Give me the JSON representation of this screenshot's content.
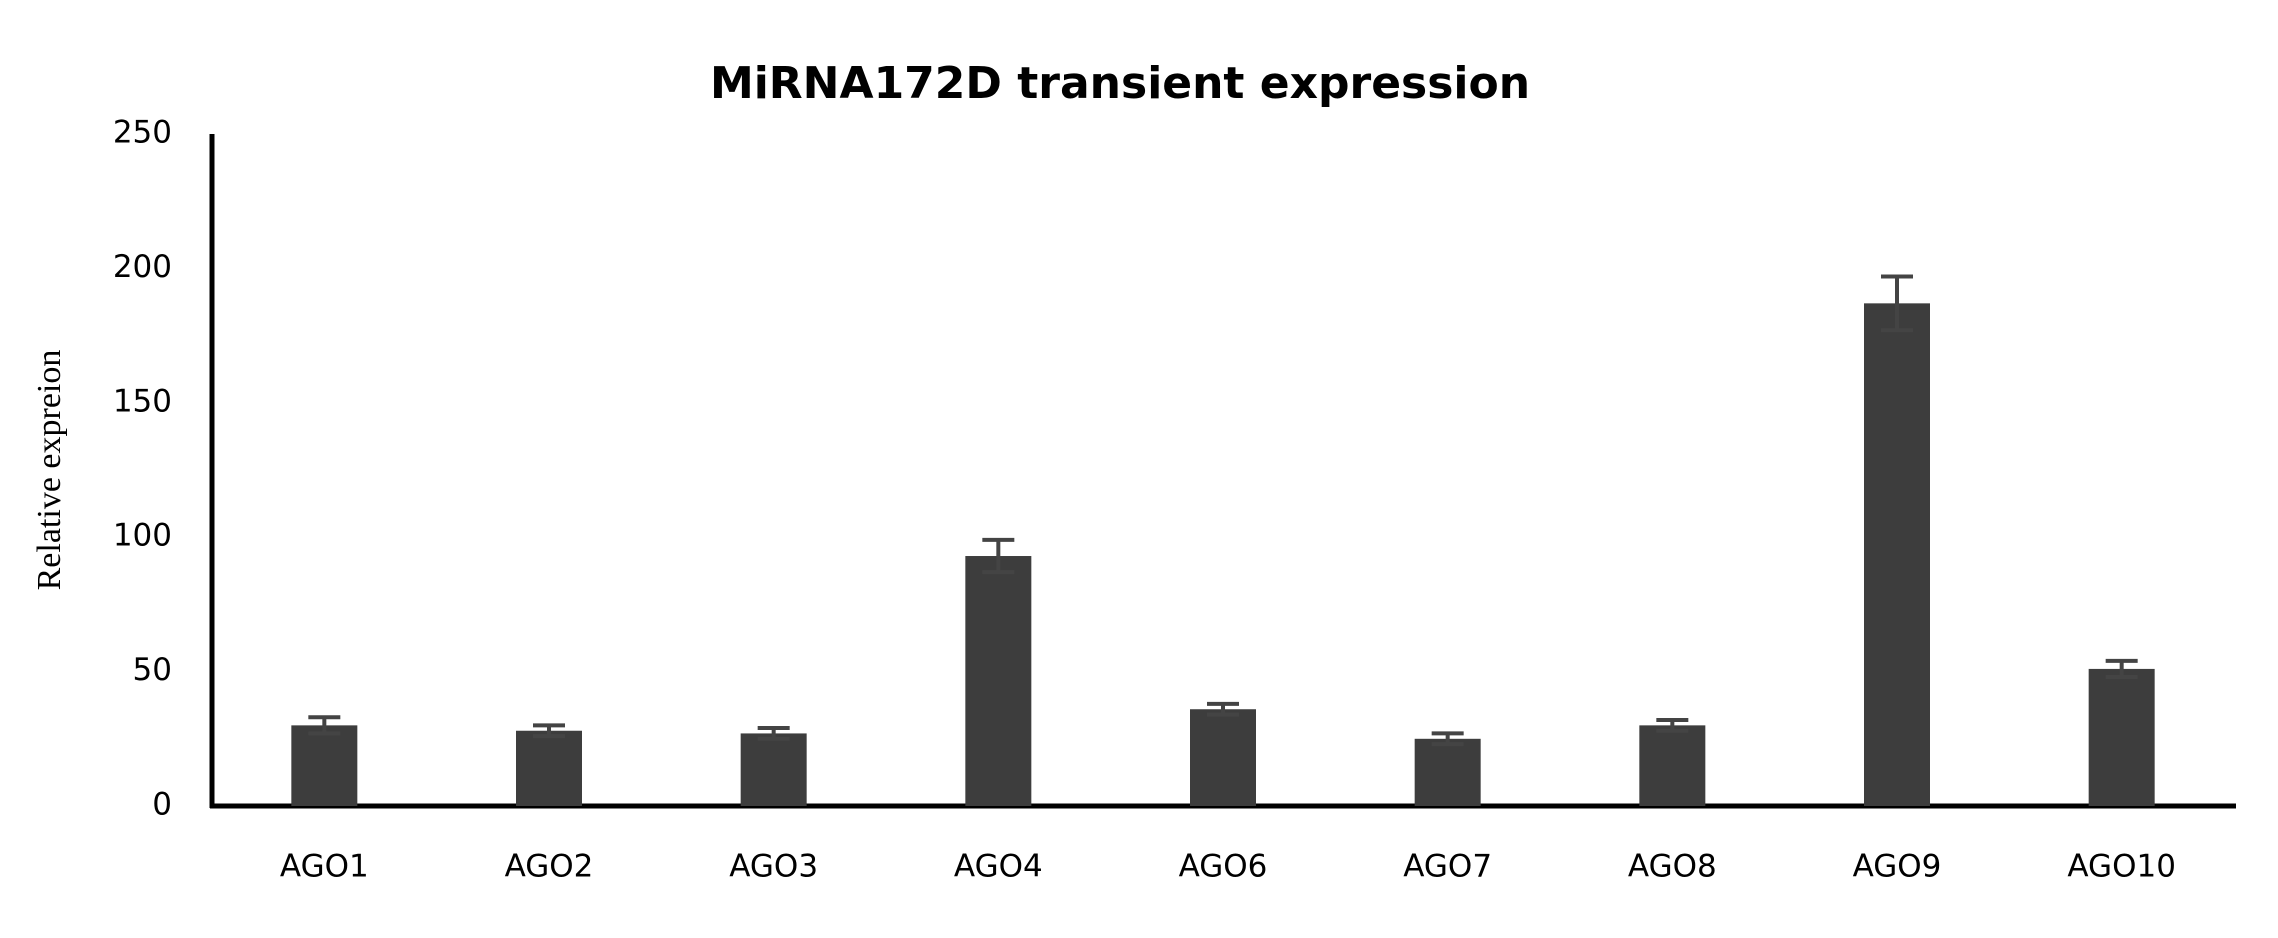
{
  "chart_data": {
    "type": "bar",
    "title": "MiRNA172D transient expression",
    "y_label": "Relative expreion",
    "categories": [
      "AGO1",
      "AGO2",
      "AGO3",
      "AGO4",
      "AGO6",
      "AGO7",
      "AGO8",
      "AGO9",
      "AGO10"
    ],
    "values": [
      30,
      28,
      27,
      93,
      36,
      25,
      30,
      187,
      51
    ],
    "errors": [
      3,
      2,
      2,
      6,
      2,
      2,
      2,
      10,
      3
    ],
    "color": "#3d3d3d",
    "ylim": [
      0,
      250
    ],
    "yticks": [
      0,
      50,
      100,
      150,
      200,
      250
    ],
    "grid": false
  }
}
